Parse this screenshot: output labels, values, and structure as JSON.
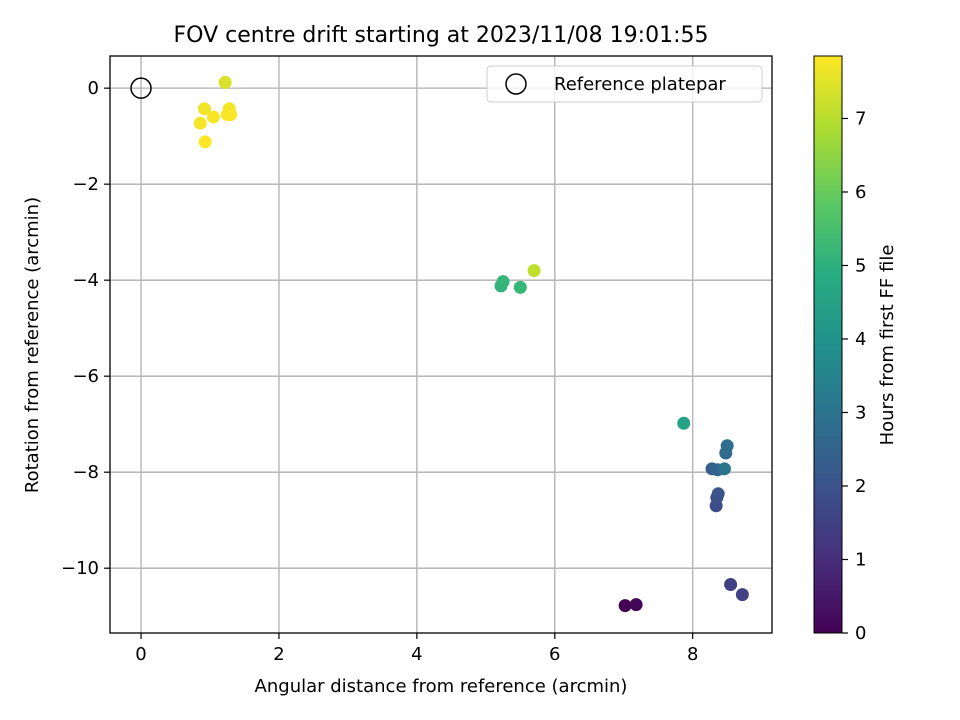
{
  "chart_data": {
    "type": "scatter",
    "title": "FOV centre drift starting at 2023/11/08 19:01:55",
    "xlabel": "Angular distance from reference (arcmin)",
    "ylabel": "Rotation from reference (arcmin)",
    "xlim": [
      -0.45,
      9.15
    ],
    "ylim": [
      -11.35,
      0.67
    ],
    "xticks": [
      0,
      2,
      4,
      6,
      8
    ],
    "yticks": [
      0,
      -2,
      -4,
      -6,
      -8,
      -10
    ],
    "grid": true,
    "legend": {
      "position": "top-right",
      "entries": [
        "Reference platepar"
      ]
    },
    "reference_point": {
      "x": 0,
      "y": 0,
      "label": "Reference platepar"
    },
    "colorbar": {
      "label": "Hours from first FF file",
      "range": [
        0,
        7.85
      ],
      "ticks": [
        0,
        1,
        2,
        3,
        4,
        5,
        6,
        7
      ],
      "colormap": "viridis"
    },
    "points": [
      {
        "x": 7.02,
        "y": -10.78,
        "hours": 0.02
      },
      {
        "x": 7.18,
        "y": -10.76,
        "hours": 0.12
      },
      {
        "x": 8.55,
        "y": -10.34,
        "hours": 1.45
      },
      {
        "x": 8.72,
        "y": -10.55,
        "hours": 1.55
      },
      {
        "x": 8.34,
        "y": -8.7,
        "hours": 1.8
      },
      {
        "x": 8.35,
        "y": -8.53,
        "hours": 1.9
      },
      {
        "x": 8.37,
        "y": -8.45,
        "hours": 2.0
      },
      {
        "x": 8.28,
        "y": -7.93,
        "hours": 2.3
      },
      {
        "x": 8.36,
        "y": -7.95,
        "hours": 2.5
      },
      {
        "x": 8.48,
        "y": -7.6,
        "hours": 2.7
      },
      {
        "x": 8.5,
        "y": -7.45,
        "hours": 2.8
      },
      {
        "x": 8.46,
        "y": -7.93,
        "hours": 3.0
      },
      {
        "x": 7.87,
        "y": -6.98,
        "hours": 4.5
      },
      {
        "x": 5.22,
        "y": -4.12,
        "hours": 5.05
      },
      {
        "x": 5.25,
        "y": -4.03,
        "hours": 5.15
      },
      {
        "x": 5.5,
        "y": -4.15,
        "hours": 5.2
      },
      {
        "x": 5.7,
        "y": -3.8,
        "hours": 7.1
      },
      {
        "x": 1.22,
        "y": 0.12,
        "hours": 7.4
      },
      {
        "x": 0.92,
        "y": -0.43,
        "hours": 7.7
      },
      {
        "x": 1.28,
        "y": -0.43,
        "hours": 7.72
      },
      {
        "x": 0.86,
        "y": -0.73,
        "hours": 7.74
      },
      {
        "x": 1.05,
        "y": -0.6,
        "hours": 7.76
      },
      {
        "x": 1.25,
        "y": -0.55,
        "hours": 7.78
      },
      {
        "x": 1.3,
        "y": -0.55,
        "hours": 7.8
      },
      {
        "x": 0.93,
        "y": -1.12,
        "hours": 7.82
      }
    ]
  }
}
